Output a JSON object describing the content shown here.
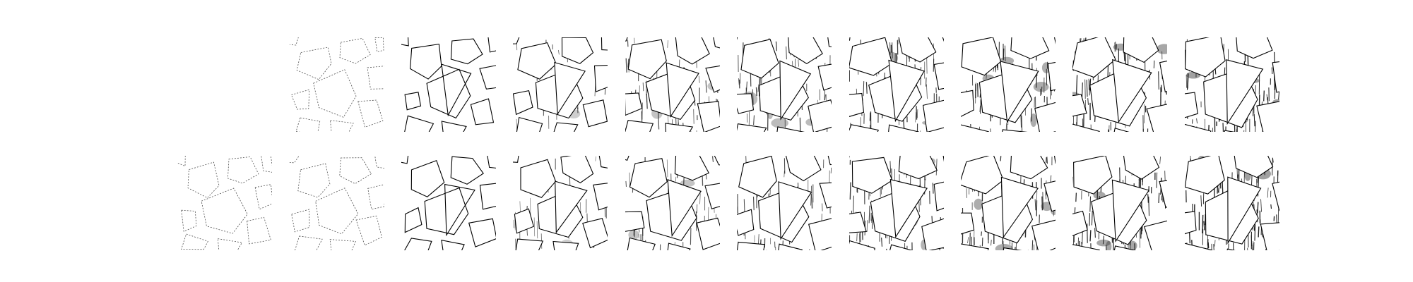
{
  "figure": {
    "rows": [
      {
        "panels": [
          {
            "present": false,
            "density": 0.0
          },
          {
            "present": true,
            "density": 0.05
          },
          {
            "present": true,
            "density": 0.12
          },
          {
            "present": true,
            "density": 0.25
          },
          {
            "present": true,
            "density": 0.4
          },
          {
            "present": true,
            "density": 0.52
          },
          {
            "present": true,
            "density": 0.62
          },
          {
            "present": true,
            "density": 0.72
          },
          {
            "present": true,
            "density": 0.8
          },
          {
            "present": true,
            "density": 0.88
          }
        ]
      },
      {
        "panels": [
          {
            "present": true,
            "density": 0.03
          },
          {
            "present": true,
            "density": 0.08
          },
          {
            "present": true,
            "density": 0.14
          },
          {
            "present": true,
            "density": 0.25
          },
          {
            "present": true,
            "density": 0.4
          },
          {
            "present": true,
            "density": 0.52
          },
          {
            "present": true,
            "density": 0.62
          },
          {
            "present": true,
            "density": 0.72
          },
          {
            "present": true,
            "density": 0.8
          },
          {
            "present": true,
            "density": 0.88
          }
        ]
      }
    ],
    "colors": {
      "background": "#ffffff",
      "edge": "#000000",
      "hatch": "#111111",
      "fill": "#ffffff"
    }
  }
}
